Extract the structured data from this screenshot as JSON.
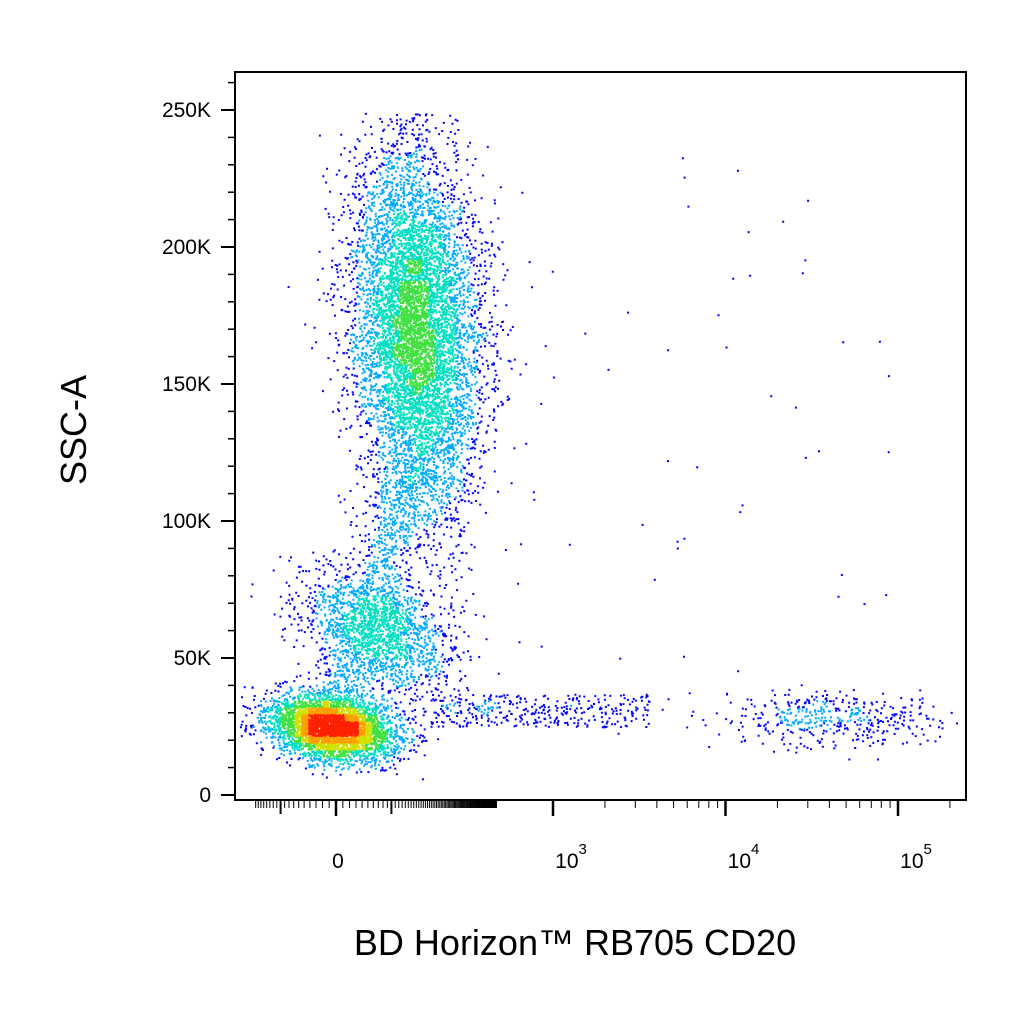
{
  "chart_data": {
    "type": "scatter",
    "subtype": "flow-cytometry-density-dot-plot",
    "xlabel": "BD Horizon™ RB705 CD20",
    "ylabel": "SSC-A",
    "x_scale": "biexponential",
    "y_scale": "linear",
    "ylim": [
      0,
      262144
    ],
    "xlim": [
      -300,
      200000
    ],
    "y_ticks": [
      {
        "value": 0,
        "label": "0"
      },
      {
        "value": 50000,
        "label": "50K"
      },
      {
        "value": 100000,
        "label": "100K"
      },
      {
        "value": 150000,
        "label": "150K"
      },
      {
        "value": 200000,
        "label": "200K"
      },
      {
        "value": 250000,
        "label": "250K"
      }
    ],
    "x_ticks": [
      {
        "value": 0,
        "label": "0",
        "exponent": ""
      },
      {
        "value": 1000,
        "label": "10",
        "exponent": "3"
      },
      {
        "value": 10000,
        "label": "10",
        "exponent": "4"
      },
      {
        "value": 100000,
        "label": "10",
        "exponent": "5"
      }
    ],
    "density_colors": [
      "#0000ff",
      "#00aaff",
      "#00e0c0",
      "#40e040",
      "#d0e000",
      "#ffa000",
      "#ff2000"
    ],
    "populations": [
      {
        "name": "",
        "x_center": 0,
        "y_center": 25000,
        "count": 4200
      },
      {
        "name": "",
        "x_center": 120,
        "y_center": 60000,
        "count": 1600
      },
      {
        "name": "",
        "x_center": 190,
        "y_center": 170000,
        "count": 7500
      },
      {
        "name": "",
        "x_center": 30000,
        "y_center": 28000,
        "count": 420
      }
    ],
    "grid": false,
    "legend": "none"
  }
}
